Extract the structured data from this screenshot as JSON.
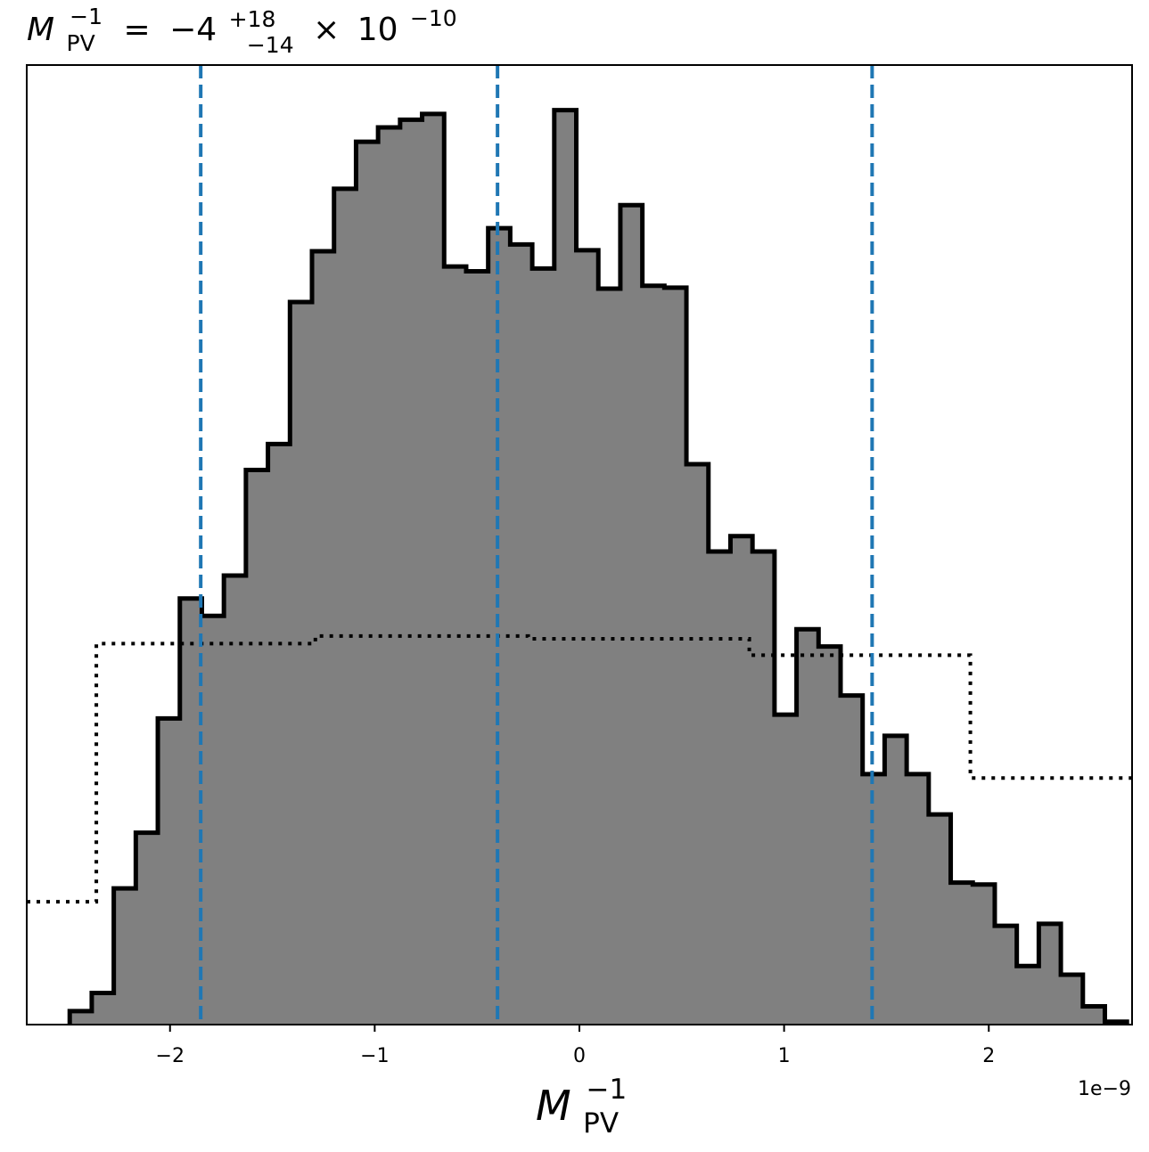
{
  "chart_data": {
    "type": "histogram",
    "title": {
      "symbol": "M",
      "subscript": "PV",
      "superscript": "−1",
      "equals": "=",
      "value": "−4",
      "upper_error": "+18",
      "lower_error": "−14",
      "times": "×",
      "base": "10",
      "exponent": "−10"
    },
    "xlabel": {
      "symbol": "M",
      "subscript": "PV",
      "superscript": "−1"
    },
    "ylabel": "",
    "x_scale_label": "1e−9",
    "xlim": [
      -2.7,
      2.7
    ],
    "ylim": [
      0,
      1.0
    ],
    "x_ticks": [
      {
        "value": -2,
        "label": "−2"
      },
      {
        "value": -1,
        "label": "−1"
      },
      {
        "value": 0,
        "label": "0"
      },
      {
        "value": 1,
        "label": "1"
      },
      {
        "value": 2,
        "label": "2"
      }
    ],
    "y_ticks_shown": false,
    "grid": false,
    "colors": {
      "histogram_fill": "#808080",
      "histogram_edge": "#000000",
      "quantile_lines": "#1f77b4",
      "prior": "#000000"
    },
    "posterior_histogram": {
      "name": "",
      "style": "filled step",
      "bin_start": -2.49,
      "bin_width": 0.1076,
      "heights": [
        0.014,
        0.033,
        0.142,
        0.2,
        0.319,
        0.444,
        0.426,
        0.468,
        0.578,
        0.605,
        0.753,
        0.806,
        0.871,
        0.92,
        0.935,
        0.943,
        0.949,
        0.79,
        0.785,
        0.83,
        0.813,
        0.788,
        0.953,
        0.807,
        0.767,
        0.854,
        0.77,
        0.768,
        0.584,
        0.493,
        0.509,
        0.493,
        0.323,
        0.412,
        0.394,
        0.343,
        0.261,
        0.301,
        0.261,
        0.219,
        0.148,
        0.146,
        0.103,
        0.061,
        0.105,
        0.052,
        0.019,
        0.003
      ]
    },
    "prior_histogram": {
      "name": "",
      "style": "dotted step",
      "edges": [
        -2.7,
        -2.36,
        -1.29,
        -0.25,
        0.83,
        1.91,
        2.7
      ],
      "heights": [
        0.128,
        0.397,
        0.405,
        0.402,
        0.385,
        0.257
      ]
    },
    "quantile_lines": [
      {
        "quantile": "16%",
        "value": -1.85
      },
      {
        "quantile": "50%",
        "value": -0.4
      },
      {
        "quantile": "84%",
        "value": 1.43
      }
    ]
  }
}
